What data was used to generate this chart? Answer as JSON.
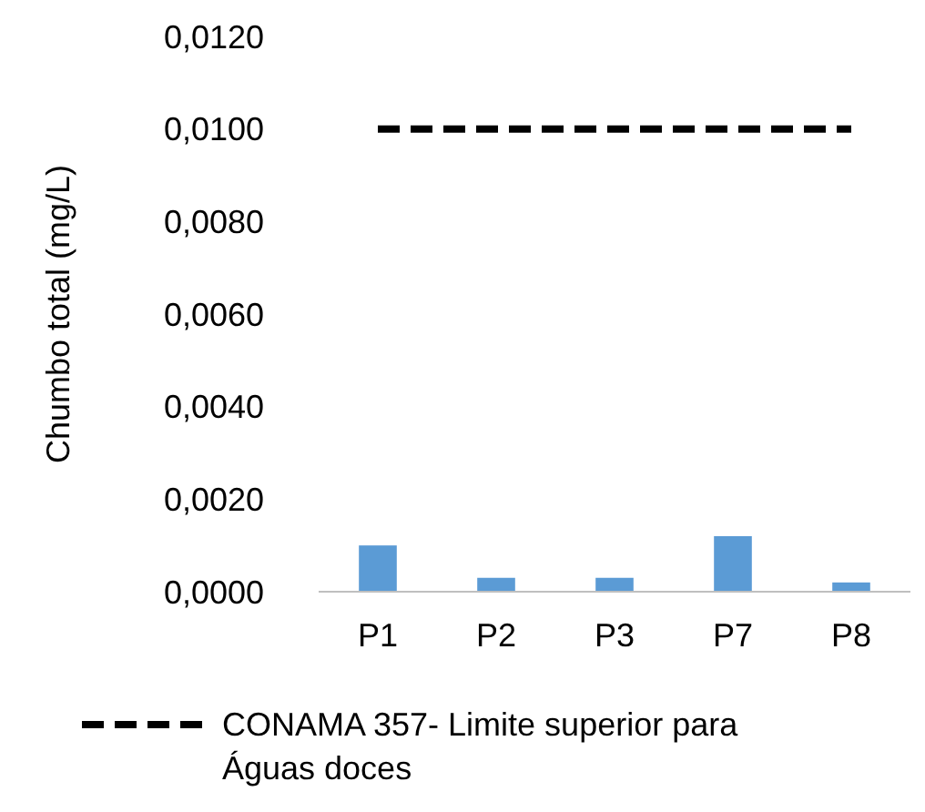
{
  "chart_data": {
    "type": "bar",
    "ylabel": "Chumbo total (mg/L)",
    "categories": [
      "P1",
      "P2",
      "P3",
      "P7",
      "P8"
    ],
    "series": [
      {
        "color": "#5b9bd5",
        "values": [
          0.001,
          0.0003,
          0.0003,
          0.0012,
          0.0002
        ]
      },
      {
        "type": "line",
        "name": "CONAMA 357- Limite superior para Águas doces",
        "color": "#000000",
        "line_style": "dashed",
        "marker": "none",
        "values": [
          0.01,
          0.01,
          0.01,
          0.01,
          0.01
        ]
      }
    ],
    "ylim": [
      0,
      0.012
    ],
    "yticks": [
      {
        "value": 0,
        "label": "0,0000"
      },
      {
        "value": 0.002,
        "label": "0,0020"
      },
      {
        "value": 0.004,
        "label": "0,0040"
      },
      {
        "value": 0.006,
        "label": "0,0060"
      },
      {
        "value": 0.008,
        "label": "0,0080"
      },
      {
        "value": 0.01,
        "label": "0,0100"
      },
      {
        "value": 0.012,
        "label": "0,0120"
      }
    ],
    "grid": false,
    "legend": "bottom"
  }
}
